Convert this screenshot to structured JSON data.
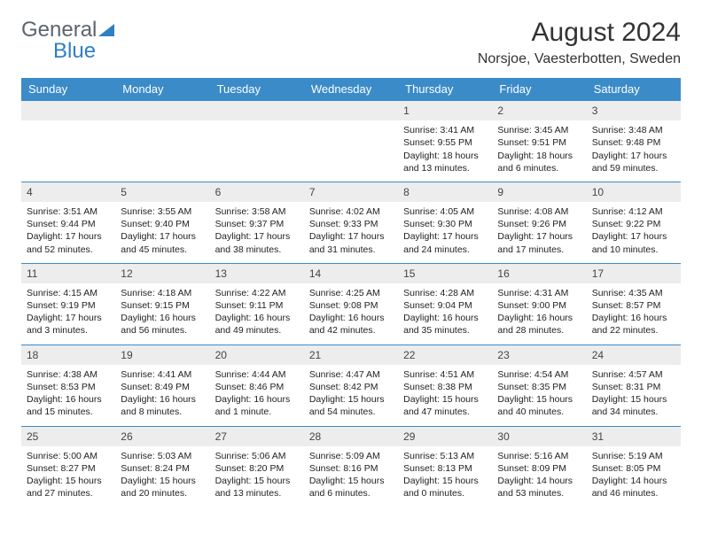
{
  "brand": {
    "part1": "General",
    "part2": "Blue"
  },
  "title": "August 2024",
  "location": "Norsjoe, Vaesterbotten, Sweden",
  "colors": {
    "header_bg": "#3b8bc9",
    "header_text": "#ffffff",
    "daynum_bg": "#ededed",
    "rule": "#3b8bc9",
    "brand_gray": "#5a6570",
    "brand_blue": "#2f7fc3"
  },
  "font": {
    "family": "Arial",
    "title_size_pt": 22,
    "location_size_pt": 12,
    "th_size_pt": 10,
    "cell_size_pt": 8
  },
  "weekdays": [
    "Sunday",
    "Monday",
    "Tuesday",
    "Wednesday",
    "Thursday",
    "Friday",
    "Saturday"
  ],
  "weeks": [
    [
      {
        "n": "",
        "sr": "",
        "ss": "",
        "dl": ""
      },
      {
        "n": "",
        "sr": "",
        "ss": "",
        "dl": ""
      },
      {
        "n": "",
        "sr": "",
        "ss": "",
        "dl": ""
      },
      {
        "n": "",
        "sr": "",
        "ss": "",
        "dl": ""
      },
      {
        "n": "1",
        "sr": "Sunrise: 3:41 AM",
        "ss": "Sunset: 9:55 PM",
        "dl": "Daylight: 18 hours and 13 minutes."
      },
      {
        "n": "2",
        "sr": "Sunrise: 3:45 AM",
        "ss": "Sunset: 9:51 PM",
        "dl": "Daylight: 18 hours and 6 minutes."
      },
      {
        "n": "3",
        "sr": "Sunrise: 3:48 AM",
        "ss": "Sunset: 9:48 PM",
        "dl": "Daylight: 17 hours and 59 minutes."
      }
    ],
    [
      {
        "n": "4",
        "sr": "Sunrise: 3:51 AM",
        "ss": "Sunset: 9:44 PM",
        "dl": "Daylight: 17 hours and 52 minutes."
      },
      {
        "n": "5",
        "sr": "Sunrise: 3:55 AM",
        "ss": "Sunset: 9:40 PM",
        "dl": "Daylight: 17 hours and 45 minutes."
      },
      {
        "n": "6",
        "sr": "Sunrise: 3:58 AM",
        "ss": "Sunset: 9:37 PM",
        "dl": "Daylight: 17 hours and 38 minutes."
      },
      {
        "n": "7",
        "sr": "Sunrise: 4:02 AM",
        "ss": "Sunset: 9:33 PM",
        "dl": "Daylight: 17 hours and 31 minutes."
      },
      {
        "n": "8",
        "sr": "Sunrise: 4:05 AM",
        "ss": "Sunset: 9:30 PM",
        "dl": "Daylight: 17 hours and 24 minutes."
      },
      {
        "n": "9",
        "sr": "Sunrise: 4:08 AM",
        "ss": "Sunset: 9:26 PM",
        "dl": "Daylight: 17 hours and 17 minutes."
      },
      {
        "n": "10",
        "sr": "Sunrise: 4:12 AM",
        "ss": "Sunset: 9:22 PM",
        "dl": "Daylight: 17 hours and 10 minutes."
      }
    ],
    [
      {
        "n": "11",
        "sr": "Sunrise: 4:15 AM",
        "ss": "Sunset: 9:19 PM",
        "dl": "Daylight: 17 hours and 3 minutes."
      },
      {
        "n": "12",
        "sr": "Sunrise: 4:18 AM",
        "ss": "Sunset: 9:15 PM",
        "dl": "Daylight: 16 hours and 56 minutes."
      },
      {
        "n": "13",
        "sr": "Sunrise: 4:22 AM",
        "ss": "Sunset: 9:11 PM",
        "dl": "Daylight: 16 hours and 49 minutes."
      },
      {
        "n": "14",
        "sr": "Sunrise: 4:25 AM",
        "ss": "Sunset: 9:08 PM",
        "dl": "Daylight: 16 hours and 42 minutes."
      },
      {
        "n": "15",
        "sr": "Sunrise: 4:28 AM",
        "ss": "Sunset: 9:04 PM",
        "dl": "Daylight: 16 hours and 35 minutes."
      },
      {
        "n": "16",
        "sr": "Sunrise: 4:31 AM",
        "ss": "Sunset: 9:00 PM",
        "dl": "Daylight: 16 hours and 28 minutes."
      },
      {
        "n": "17",
        "sr": "Sunrise: 4:35 AM",
        "ss": "Sunset: 8:57 PM",
        "dl": "Daylight: 16 hours and 22 minutes."
      }
    ],
    [
      {
        "n": "18",
        "sr": "Sunrise: 4:38 AM",
        "ss": "Sunset: 8:53 PM",
        "dl": "Daylight: 16 hours and 15 minutes."
      },
      {
        "n": "19",
        "sr": "Sunrise: 4:41 AM",
        "ss": "Sunset: 8:49 PM",
        "dl": "Daylight: 16 hours and 8 minutes."
      },
      {
        "n": "20",
        "sr": "Sunrise: 4:44 AM",
        "ss": "Sunset: 8:46 PM",
        "dl": "Daylight: 16 hours and 1 minute."
      },
      {
        "n": "21",
        "sr": "Sunrise: 4:47 AM",
        "ss": "Sunset: 8:42 PM",
        "dl": "Daylight: 15 hours and 54 minutes."
      },
      {
        "n": "22",
        "sr": "Sunrise: 4:51 AM",
        "ss": "Sunset: 8:38 PM",
        "dl": "Daylight: 15 hours and 47 minutes."
      },
      {
        "n": "23",
        "sr": "Sunrise: 4:54 AM",
        "ss": "Sunset: 8:35 PM",
        "dl": "Daylight: 15 hours and 40 minutes."
      },
      {
        "n": "24",
        "sr": "Sunrise: 4:57 AM",
        "ss": "Sunset: 8:31 PM",
        "dl": "Daylight: 15 hours and 34 minutes."
      }
    ],
    [
      {
        "n": "25",
        "sr": "Sunrise: 5:00 AM",
        "ss": "Sunset: 8:27 PM",
        "dl": "Daylight: 15 hours and 27 minutes."
      },
      {
        "n": "26",
        "sr": "Sunrise: 5:03 AM",
        "ss": "Sunset: 8:24 PM",
        "dl": "Daylight: 15 hours and 20 minutes."
      },
      {
        "n": "27",
        "sr": "Sunrise: 5:06 AM",
        "ss": "Sunset: 8:20 PM",
        "dl": "Daylight: 15 hours and 13 minutes."
      },
      {
        "n": "28",
        "sr": "Sunrise: 5:09 AM",
        "ss": "Sunset: 8:16 PM",
        "dl": "Daylight: 15 hours and 6 minutes."
      },
      {
        "n": "29",
        "sr": "Sunrise: 5:13 AM",
        "ss": "Sunset: 8:13 PM",
        "dl": "Daylight: 15 hours and 0 minutes."
      },
      {
        "n": "30",
        "sr": "Sunrise: 5:16 AM",
        "ss": "Sunset: 8:09 PM",
        "dl": "Daylight: 14 hours and 53 minutes."
      },
      {
        "n": "31",
        "sr": "Sunrise: 5:19 AM",
        "ss": "Sunset: 8:05 PM",
        "dl": "Daylight: 14 hours and 46 minutes."
      }
    ]
  ]
}
